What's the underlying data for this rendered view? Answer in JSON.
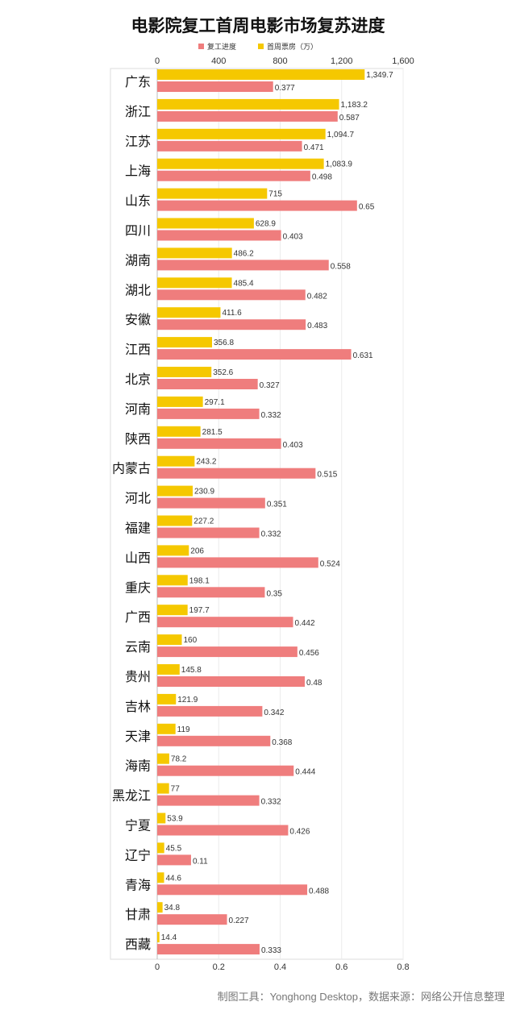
{
  "title": "电影院复工首周电影市场复苏进度",
  "source": "制图工具：Yonghong Desktop，数据来源：网络公开信息整理",
  "colors": {
    "box_office": "#f5c800",
    "recovery": "#ef7d7d"
  },
  "chart_data": {
    "type": "bar",
    "orientation": "horizontal",
    "title": "电影院复工首周电影市场复苏进度",
    "grid": true,
    "legend_position": "top",
    "categories": [
      "广东",
      "浙江",
      "江苏",
      "上海",
      "山东",
      "四川",
      "湖南",
      "湖北",
      "安徽",
      "江西",
      "北京",
      "河南",
      "陕西",
      "内蒙古",
      "河北",
      "福建",
      "山西",
      "重庆",
      "广西",
      "云南",
      "贵州",
      "吉林",
      "天津",
      "海南",
      "黑龙江",
      "宁夏",
      "辽宁",
      "青海",
      "甘肃",
      "西藏"
    ],
    "series": [
      {
        "name": "首周票房（万）",
        "axis": "top",
        "values": [
          1349.7,
          1183.2,
          1094.7,
          1083.9,
          715,
          628.9,
          486.2,
          485.4,
          411.6,
          356.8,
          352.6,
          297.1,
          281.5,
          243.2,
          230.9,
          227.2,
          206,
          198.1,
          197.7,
          160,
          145.8,
          121.9,
          119,
          78.2,
          77,
          53.9,
          45.5,
          44.6,
          34.8,
          14.4
        ],
        "labels": [
          "1,349.7",
          "1,183.2",
          "1,094.7",
          "1,083.9",
          "715",
          "628.9",
          "486.2",
          "485.4",
          "411.6",
          "356.8",
          "352.6",
          "297.1",
          "281.5",
          "243.2",
          "230.9",
          "227.2",
          "206",
          "198.1",
          "197.7",
          "160",
          "145.8",
          "121.9",
          "119",
          "78.2",
          "77",
          "53.9",
          "45.5",
          "44.6",
          "34.8",
          "14.4"
        ]
      },
      {
        "name": "复工进度",
        "axis": "bottom",
        "values": [
          0.377,
          0.587,
          0.471,
          0.498,
          0.65,
          0.403,
          0.558,
          0.482,
          0.483,
          0.631,
          0.327,
          0.332,
          0.403,
          0.515,
          0.351,
          0.332,
          0.524,
          0.35,
          0.442,
          0.456,
          0.48,
          0.342,
          0.368,
          0.444,
          0.332,
          0.426,
          0.11,
          0.488,
          0.227,
          0.333
        ],
        "labels": [
          "0.377",
          "0.587",
          "0.471",
          "0.498",
          "0.65",
          "0.403",
          "0.558",
          "0.482",
          "0.483",
          "0.631",
          "0.327",
          "0.332",
          "0.403",
          "0.515",
          "0.351",
          "0.332",
          "0.524",
          "0.35",
          "0.442",
          "0.456",
          "0.48",
          "0.342",
          "0.368",
          "0.444",
          "0.332",
          "0.426",
          "0.11",
          "0.488",
          "0.227",
          "0.333"
        ]
      }
    ],
    "top_axis": {
      "range": [
        0,
        1600
      ],
      "ticks": [
        "0",
        "400",
        "800",
        "1,200",
        "1,600"
      ]
    },
    "bottom_axis": {
      "range": [
        0,
        0.8
      ],
      "ticks": [
        "0",
        "0.2",
        "0.4",
        "0.6",
        "0.8"
      ]
    }
  }
}
